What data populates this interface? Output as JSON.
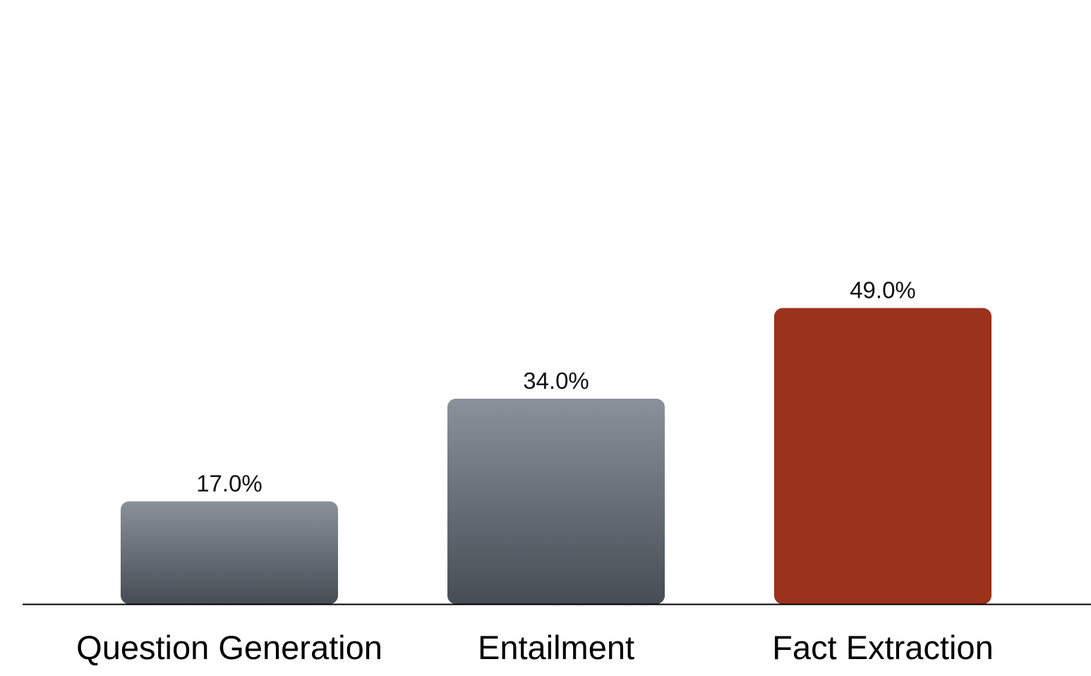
{
  "chart_data": {
    "type": "bar",
    "title": "",
    "xlabel": "",
    "ylabel": "",
    "categories": [
      "Question Generation",
      "Entailment",
      "Fact Extraction"
    ],
    "values": [
      17.0,
      34.0,
      49.0
    ],
    "value_labels": [
      "17.0%",
      "34.0%",
      "49.0%"
    ],
    "unit": "%",
    "ylim": [
      0,
      100
    ],
    "grid": false,
    "legend": "none",
    "highlighted_category": "Fact Extraction",
    "colors": {
      "default_bar_top": "#8a919b",
      "default_bar_bottom": "#474d55",
      "highlight_bar": "#9b321b",
      "axis_line": "#000000"
    }
  }
}
